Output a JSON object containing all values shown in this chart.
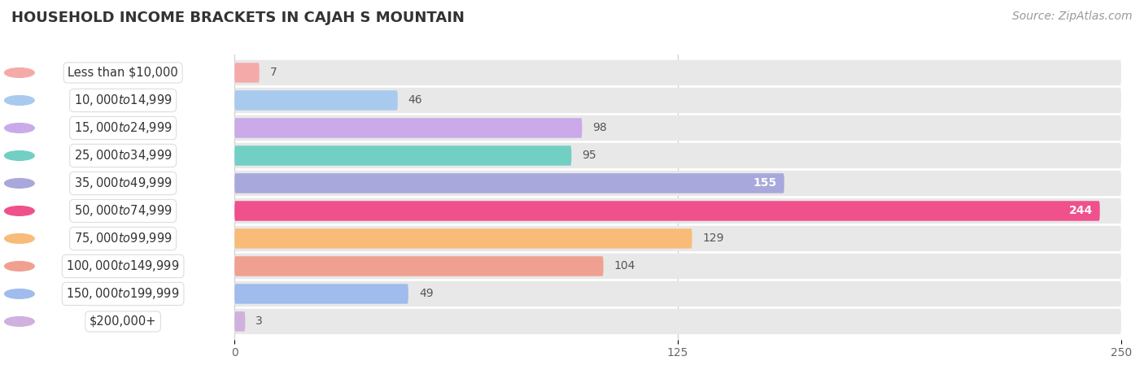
{
  "title": "HOUSEHOLD INCOME BRACKETS IN CAJAH S MOUNTAIN",
  "source": "Source: ZipAtlas.com",
  "categories": [
    "Less than $10,000",
    "$10,000 to $14,999",
    "$15,000 to $24,999",
    "$25,000 to $34,999",
    "$35,000 to $49,999",
    "$50,000 to $74,999",
    "$75,000 to $99,999",
    "$100,000 to $149,999",
    "$150,000 to $199,999",
    "$200,000+"
  ],
  "values": [
    7,
    46,
    98,
    95,
    155,
    244,
    129,
    104,
    49,
    3
  ],
  "colors": [
    "#f5aaaa",
    "#a8caee",
    "#caaae8",
    "#72cfc4",
    "#a8a8dc",
    "#f0508c",
    "#f8bc78",
    "#f0a090",
    "#a0bcec",
    "#d0b0dc"
  ],
  "xlim": [
    0,
    250
  ],
  "xticks": [
    0,
    125,
    250
  ],
  "bar_bg_color": "#e8e8e8",
  "label_bg_color": "#ffffff",
  "row_bg_colors": [
    "#f7f7f7",
    "#f0f0f0"
  ],
  "title_fontsize": 13,
  "label_fontsize": 10.5,
  "value_fontsize": 10,
  "source_fontsize": 10,
  "value_threshold_inside": 200
}
